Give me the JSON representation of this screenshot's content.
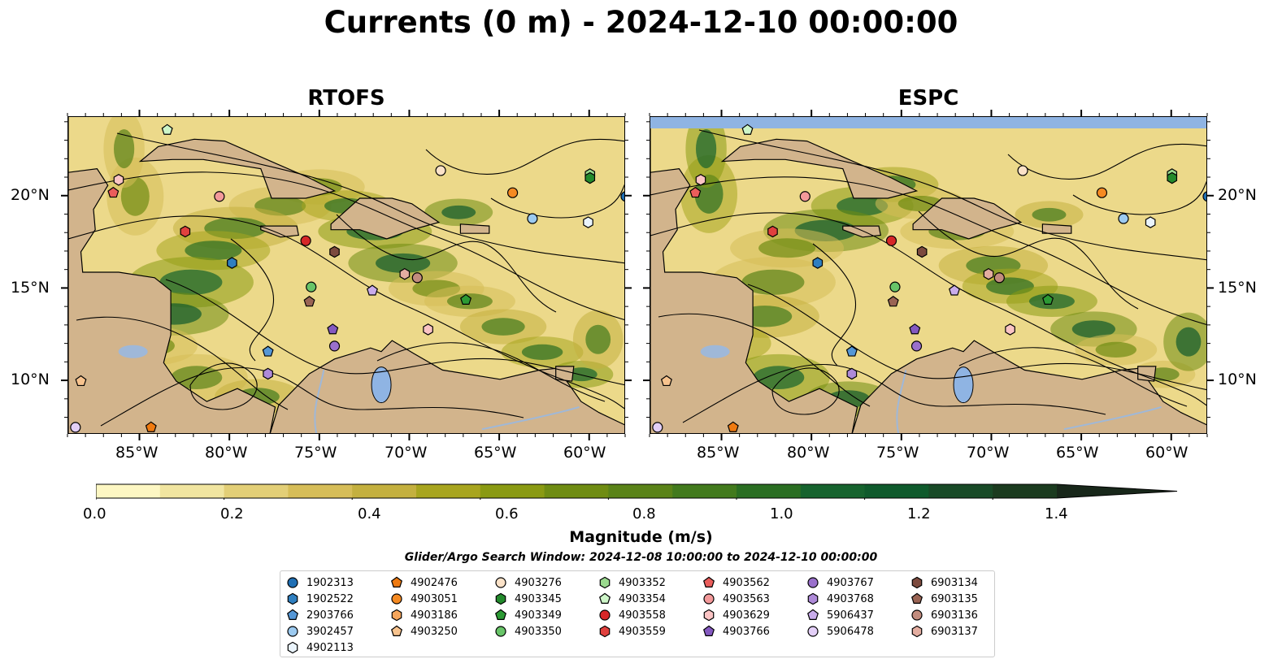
{
  "title": "Currents (0 m) - 2024-12-10 00:00:00",
  "panels": [
    {
      "title": "RTOFS"
    },
    {
      "title": "ESPC"
    }
  ],
  "axes": {
    "lon_ticks": [
      "85°W",
      "80°W",
      "75°W",
      "70°W",
      "65°W",
      "60°W"
    ],
    "lat_ticks": [
      "20°N",
      "15°N",
      "10°N"
    ]
  },
  "colors": {
    "land": "#d2b48c",
    "lake": "#8fb4e3",
    "river": "#9fb8d8",
    "streamline": "#000000"
  },
  "colorbar": {
    "label": "Magnitude (m/s)",
    "tick_labels": [
      "0.0",
      "0.2",
      "0.4",
      "0.6",
      "0.8",
      "1.0",
      "1.2",
      "1.4"
    ],
    "range": [
      0,
      1.5
    ],
    "extend": "max",
    "colors": [
      "#fdf7c3",
      "#f1e5a0",
      "#e3cf77",
      "#d6bd58",
      "#c4b03f",
      "#a8a51f",
      "#8a9a12",
      "#6f8c12",
      "#5a8318",
      "#427a1d",
      "#2a6e22",
      "#16632e",
      "#0f5a2c",
      "#184a27",
      "#1b3b1f",
      "#18271a"
    ]
  },
  "search_window": "Glider/Argo Search Window: 2024-12-08 10:00:00 to 2024-12-10 00:00:00",
  "legend": [
    {
      "id": "1902313",
      "shape": "circle",
      "color": "#1f6fb4"
    },
    {
      "id": "1902522",
      "shape": "hexagon",
      "color": "#2f7fc0"
    },
    {
      "id": "2903766",
      "shape": "pentagon",
      "color": "#5597d6"
    },
    {
      "id": "3902457",
      "shape": "circle",
      "color": "#9ccaf0"
    },
    {
      "id": "4902113",
      "shape": "hexagon",
      "color": "#eaf4fc"
    },
    {
      "id": "4902476",
      "shape": "pentagon",
      "color": "#ef7a10"
    },
    {
      "id": "4903051",
      "shape": "circle",
      "color": "#f58a22"
    },
    {
      "id": "4903186",
      "shape": "hexagon",
      "color": "#f6a65c"
    },
    {
      "id": "4903250",
      "shape": "pentagon",
      "color": "#f7c38e"
    },
    {
      "id": "4903276",
      "shape": "circle",
      "color": "#fbe2c8"
    },
    {
      "id": "4903345",
      "shape": "hexagon",
      "color": "#238a2c"
    },
    {
      "id": "4903349",
      "shape": "pentagon",
      "color": "#2c9a34"
    },
    {
      "id": "4903350",
      "shape": "circle",
      "color": "#68c468"
    },
    {
      "id": "4903352",
      "shape": "hexagon",
      "color": "#9ad98e"
    },
    {
      "id": "4903354",
      "shape": "pentagon",
      "color": "#cdf5c8"
    },
    {
      "id": "4903558",
      "shape": "circle",
      "color": "#d62728"
    },
    {
      "id": "4903559",
      "shape": "hexagon",
      "color": "#e0413e"
    },
    {
      "id": "4903562",
      "shape": "pentagon",
      "color": "#ea5d5b"
    },
    {
      "id": "4903563",
      "shape": "circle",
      "color": "#f3999a"
    },
    {
      "id": "4903629",
      "shape": "hexagon",
      "color": "#fbc4c4"
    },
    {
      "id": "4903766",
      "shape": "pentagon",
      "color": "#8459c0"
    },
    {
      "id": "4903767",
      "shape": "circle",
      "color": "#9a70cc"
    },
    {
      "id": "4903768",
      "shape": "hexagon",
      "color": "#ae8ad8"
    },
    {
      "id": "5906437",
      "shape": "pentagon",
      "color": "#c9aceb"
    },
    {
      "id": "5906478",
      "shape": "circle",
      "color": "#e3cff7"
    },
    {
      "id": "6903134",
      "shape": "hexagon",
      "color": "#7c4a3e"
    },
    {
      "id": "6903135",
      "shape": "pentagon",
      "color": "#9a6454"
    },
    {
      "id": "6903136",
      "shape": "circle",
      "color": "#c28c7e"
    },
    {
      "id": "6903137",
      "shape": "hexagon",
      "color": "#e3ada0"
    }
  ],
  "markers": [
    {
      "panel": 0,
      "id": "1902313",
      "lon": -58.0,
      "lat": 20.0
    },
    {
      "panel": 0,
      "id": "3902457",
      "lon": -63.2,
      "lat": 18.8
    },
    {
      "panel": 0,
      "id": "4902113",
      "lon": -60.1,
      "lat": 18.6
    },
    {
      "panel": 0,
      "id": "4903352",
      "lon": -60.0,
      "lat": 21.2
    },
    {
      "panel": 0,
      "id": "4903345",
      "lon": -60.0,
      "lat": 21.0
    },
    {
      "panel": 0,
      "id": "4903051",
      "lon": -64.3,
      "lat": 20.2
    },
    {
      "panel": 0,
      "id": "4903276",
      "lon": -68.3,
      "lat": 21.4
    },
    {
      "panel": 0,
      "id": "4903354",
      "lon": -83.5,
      "lat": 23.6
    },
    {
      "panel": 0,
      "id": "4903629",
      "lon": -86.2,
      "lat": 20.9
    },
    {
      "panel": 0,
      "id": "4903562",
      "lon": -86.5,
      "lat": 20.2
    },
    {
      "panel": 0,
      "id": "4903563",
      "lon": -80.6,
      "lat": 20.0
    },
    {
      "panel": 0,
      "id": "4903559",
      "lon": -82.5,
      "lat": 18.1
    },
    {
      "panel": 0,
      "id": "1902522",
      "lon": -79.9,
      "lat": 16.4
    },
    {
      "panel": 0,
      "id": "4903558",
      "lon": -75.8,
      "lat": 17.6
    },
    {
      "panel": 0,
      "id": "6903134",
      "lon": -74.2,
      "lat": 17.0
    },
    {
      "panel": 0,
      "id": "4903350",
      "lon": -75.5,
      "lat": 15.1
    },
    {
      "panel": 0,
      "id": "6903135",
      "lon": -75.6,
      "lat": 14.3
    },
    {
      "panel": 0,
      "id": "5906437",
      "lon": -72.1,
      "lat": 14.9
    },
    {
      "panel": 0,
      "id": "6903137",
      "lon": -70.3,
      "lat": 15.8
    },
    {
      "panel": 0,
      "id": "6903136",
      "lon": -69.6,
      "lat": 15.6
    },
    {
      "panel": 0,
      "id": "4903349",
      "lon": -66.9,
      "lat": 14.4
    },
    {
      "panel": 0,
      "id": "4903766",
      "lon": -74.3,
      "lat": 12.8
    },
    {
      "panel": 0,
      "id": "4903767",
      "lon": -74.2,
      "lat": 11.9
    },
    {
      "panel": 0,
      "id": "4903629",
      "lon": -69.0,
      "lat": 12.8
    },
    {
      "panel": 0,
      "id": "2903766",
      "lon": -77.9,
      "lat": 11.6
    },
    {
      "panel": 0,
      "id": "4903768",
      "lon": -77.9,
      "lat": 10.4
    },
    {
      "panel": 0,
      "id": "4903250",
      "lon": -88.3,
      "lat": 10.0
    },
    {
      "panel": 0,
      "id": "5906478",
      "lon": -88.6,
      "lat": 7.5
    },
    {
      "panel": 0,
      "id": "4902476",
      "lon": -84.4,
      "lat": 7.5
    },
    {
      "panel": 1,
      "id": "1902313",
      "lon": -58.0,
      "lat": 20.0
    },
    {
      "panel": 1,
      "id": "3902457",
      "lon": -62.7,
      "lat": 18.8
    },
    {
      "panel": 1,
      "id": "4902113",
      "lon": -61.2,
      "lat": 18.6
    },
    {
      "panel": 1,
      "id": "4903352",
      "lon": -60.0,
      "lat": 21.2
    },
    {
      "panel": 1,
      "id": "4903345",
      "lon": -60.0,
      "lat": 21.0
    },
    {
      "panel": 1,
      "id": "4903051",
      "lon": -63.9,
      "lat": 20.2
    },
    {
      "panel": 1,
      "id": "4903276",
      "lon": -68.3,
      "lat": 21.4
    },
    {
      "panel": 1,
      "id": "4903354",
      "lon": -83.6,
      "lat": 23.6
    },
    {
      "panel": 1,
      "id": "4903629",
      "lon": -86.2,
      "lat": 20.9
    },
    {
      "panel": 1,
      "id": "4903562",
      "lon": -86.5,
      "lat": 20.2
    },
    {
      "panel": 1,
      "id": "4903563",
      "lon": -80.4,
      "lat": 20.0
    },
    {
      "panel": 1,
      "id": "4903559",
      "lon": -82.2,
      "lat": 18.1
    },
    {
      "panel": 1,
      "id": "1902522",
      "lon": -79.7,
      "lat": 16.4
    },
    {
      "panel": 1,
      "id": "4903558",
      "lon": -75.6,
      "lat": 17.6
    },
    {
      "panel": 1,
      "id": "6903134",
      "lon": -73.9,
      "lat": 17.0
    },
    {
      "panel": 1,
      "id": "4903350",
      "lon": -75.4,
      "lat": 15.1
    },
    {
      "panel": 1,
      "id": "6903135",
      "lon": -75.5,
      "lat": 14.3
    },
    {
      "panel": 1,
      "id": "5906437",
      "lon": -72.1,
      "lat": 14.9
    },
    {
      "panel": 1,
      "id": "6903137",
      "lon": -70.2,
      "lat": 15.8
    },
    {
      "panel": 1,
      "id": "6903136",
      "lon": -69.6,
      "lat": 15.6
    },
    {
      "panel": 1,
      "id": "4903349",
      "lon": -66.9,
      "lat": 14.4
    },
    {
      "panel": 1,
      "id": "4903766",
      "lon": -74.3,
      "lat": 12.8
    },
    {
      "panel": 1,
      "id": "4903767",
      "lon": -74.2,
      "lat": 11.9
    },
    {
      "panel": 1,
      "id": "4903629",
      "lon": -69.0,
      "lat": 12.8
    },
    {
      "panel": 1,
      "id": "2903766",
      "lon": -77.8,
      "lat": 11.6
    },
    {
      "panel": 1,
      "id": "4903768",
      "lon": -77.8,
      "lat": 10.4
    },
    {
      "panel": 1,
      "id": "4903250",
      "lon": -88.1,
      "lat": 10.0
    },
    {
      "panel": 1,
      "id": "5906478",
      "lon": -88.6,
      "lat": 7.5
    },
    {
      "panel": 1,
      "id": "4902476",
      "lon": -84.4,
      "lat": 7.5
    }
  ]
}
